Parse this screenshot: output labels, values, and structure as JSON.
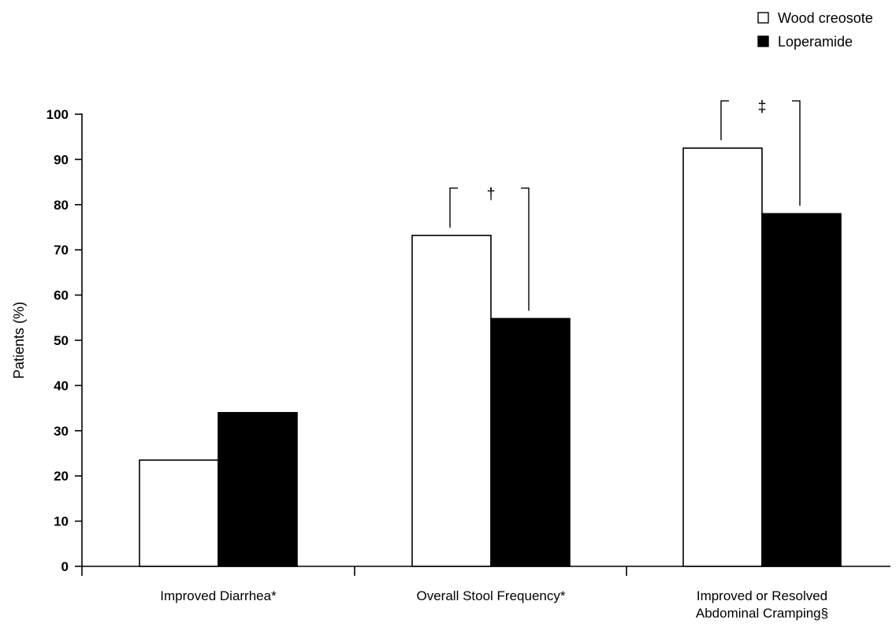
{
  "chart_data": {
    "type": "bar",
    "title": "",
    "xlabel": "",
    "ylabel": "Patients (%)",
    "ylim": [
      0,
      100
    ],
    "yticks": [
      0,
      10,
      20,
      30,
      40,
      50,
      60,
      70,
      80,
      90,
      100
    ],
    "grid": false,
    "legend_position": "top-right",
    "categories": [
      [
        "Improved Diarrhea*"
      ],
      [
        "Overall Stool Frequency*"
      ],
      [
        "Improved or Resolved",
        "Abdominal Cramping§"
      ]
    ],
    "series": [
      {
        "name": "Wood creosote",
        "color": "#ffffff",
        "values": [
          23.5,
          73.2,
          92.5
        ]
      },
      {
        "name": "Loperamide",
        "color": "#000000",
        "values": [
          34.0,
          54.8,
          78.0
        ]
      }
    ],
    "annotations": [
      {
        "category_index": 1,
        "text": "†"
      },
      {
        "category_index": 2,
        "text": "‡"
      }
    ]
  }
}
